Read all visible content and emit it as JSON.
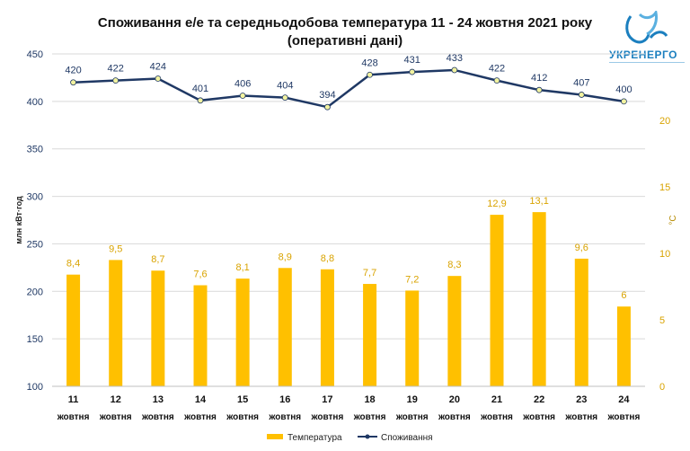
{
  "title_line1": "Споживання е/е та середньодобова температура 11 - 24 жовтня 2021 року",
  "title_line2": "(оперативні дані)",
  "logo_text": "УКРЕНЕРГО",
  "colors": {
    "bar": "#ffc000",
    "line": "#1f3864",
    "marker_fill": "#f3f3a0",
    "label_bar": "#d9a300",
    "axis_right": "#d9a300",
    "axis_left": "#1f3864"
  },
  "chart_data": {
    "type": "bar+line",
    "categories": [
      "11",
      "12",
      "13",
      "14",
      "15",
      "16",
      "17",
      "18",
      "19",
      "20",
      "21",
      "22",
      "23",
      "24"
    ],
    "category_sub": "жовтня",
    "series": [
      {
        "name": "Температура",
        "type": "bar",
        "axis": "right",
        "values": [
          8.4,
          9.5,
          8.7,
          7.6,
          8.1,
          8.9,
          8.8,
          7.7,
          7.2,
          8.3,
          12.9,
          13.1,
          9.6,
          6
        ],
        "labels": [
          "8,4",
          "9,5",
          "8,7",
          "7,6",
          "8,1",
          "8,9",
          "8,8",
          "7,7",
          "7,2",
          "8,3",
          "12,9",
          "13,1",
          "9,6",
          "6"
        ]
      },
      {
        "name": "Споживання",
        "type": "line",
        "axis": "left",
        "values": [
          420,
          422,
          424,
          401,
          406,
          404,
          394,
          428,
          431,
          433,
          422,
          412,
          407,
          400
        ],
        "labels": [
          "420",
          "422",
          "424",
          "401",
          "406",
          "404",
          "394",
          "428",
          "431",
          "433",
          "422",
          "412",
          "407",
          "400"
        ]
      }
    ],
    "y_left": {
      "label": "млн кВт·год",
      "min": 100,
      "max": 450,
      "ticks": [
        100,
        150,
        200,
        250,
        300,
        350,
        400,
        450
      ]
    },
    "y_right": {
      "label": "°С",
      "min": 0,
      "max": 25,
      "ticks": [
        0,
        5,
        10,
        15,
        20
      ]
    }
  }
}
